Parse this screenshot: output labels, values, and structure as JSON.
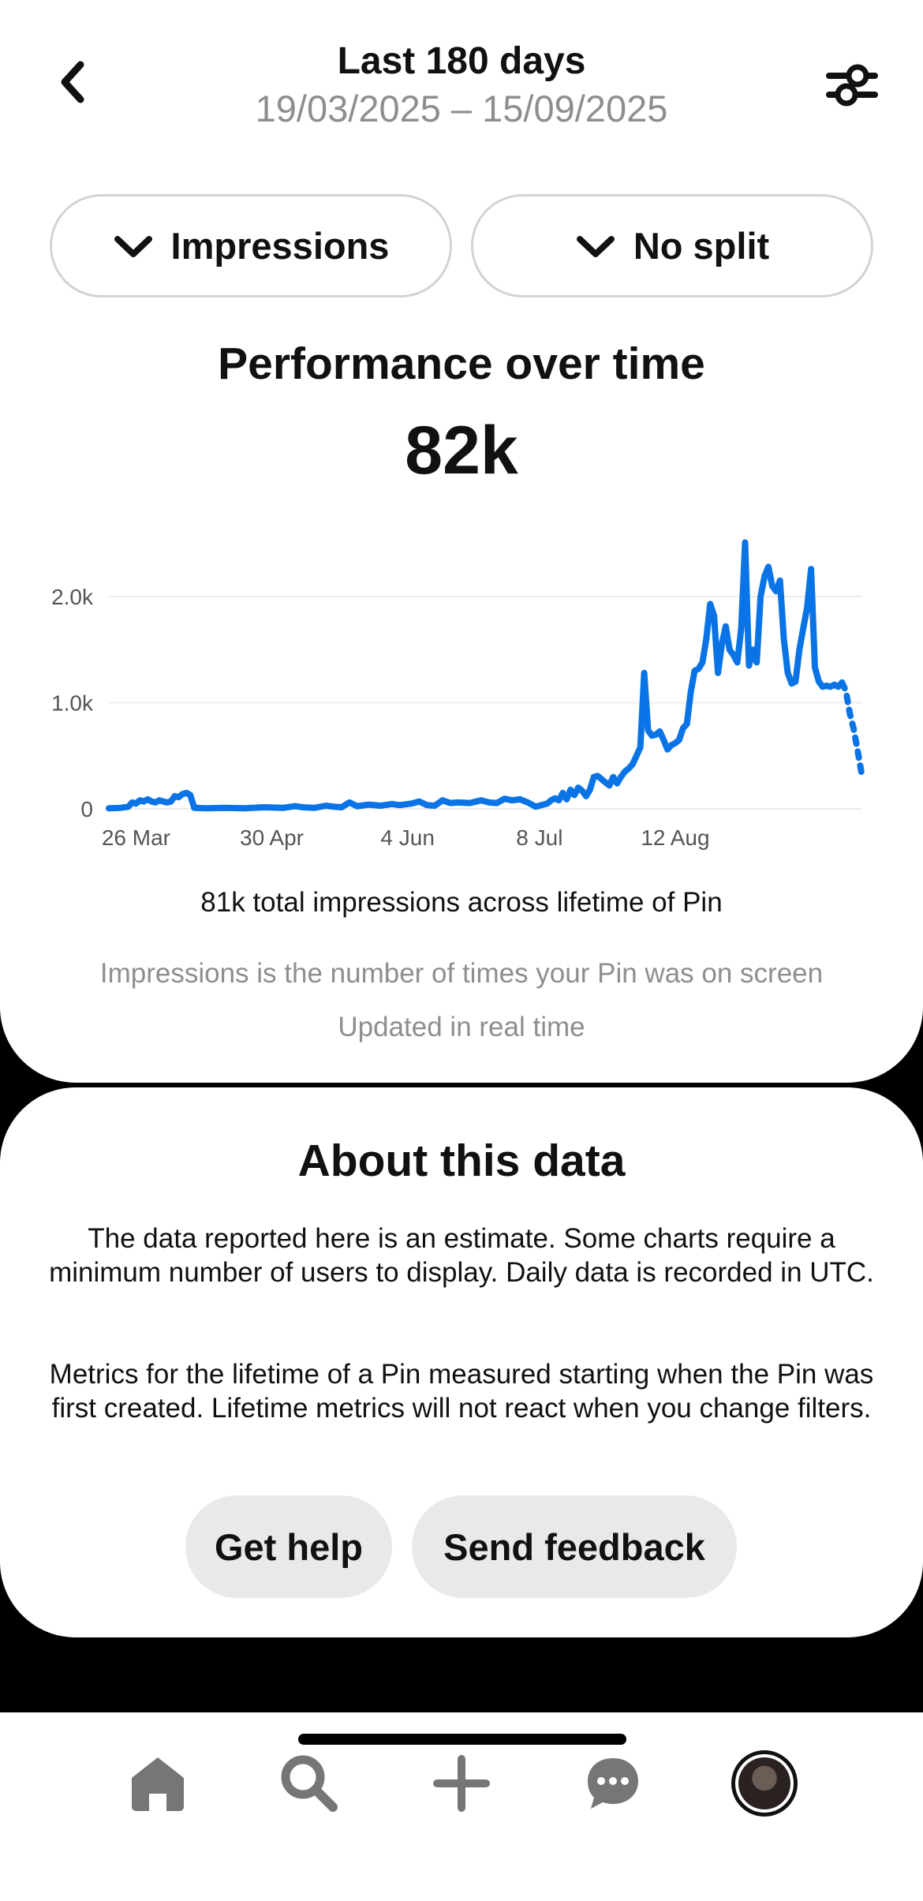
{
  "header": {
    "title": "Last 180 days",
    "date_range": "19/03/2025 – 15/09/2025",
    "back_icon": "chevron-left-icon",
    "filter_icon": "sliders-icon"
  },
  "dropdowns": {
    "metric": "Impressions",
    "split": "No split"
  },
  "chart_section": {
    "title": "Performance over time",
    "total": "82k",
    "lifetime_text": "81k total impressions across lifetime of Pin",
    "explanation": "Impressions is the number of times your Pin was on screen",
    "updated": "Updated in real time"
  },
  "chart_data": {
    "type": "line",
    "color": "#0a74e6",
    "grid": true,
    "ylim": [
      0,
      2500
    ],
    "y_ticks": [
      {
        "value": 0,
        "label": "0"
      },
      {
        "value": 1000,
        "label": "1.0k"
      },
      {
        "value": 2000,
        "label": "2.0k"
      }
    ],
    "x_ticks": [
      {
        "day": 7,
        "label": "26 Mar"
      },
      {
        "day": 42,
        "label": "30 Apr"
      },
      {
        "day": 77,
        "label": "4 Jun"
      },
      {
        "day": 111,
        "label": "8 Jul"
      },
      {
        "day": 146,
        "label": "12 Aug"
      }
    ],
    "x_range": [
      0,
      180
    ],
    "solid_points": [
      [
        0,
        5
      ],
      [
        3,
        10
      ],
      [
        5,
        20
      ],
      [
        6,
        60
      ],
      [
        7,
        50
      ],
      [
        8,
        80
      ],
      [
        9,
        70
      ],
      [
        10,
        90
      ],
      [
        11,
        70
      ],
      [
        12,
        60
      ],
      [
        13,
        80
      ],
      [
        14,
        70
      ],
      [
        15,
        60
      ],
      [
        16,
        70
      ],
      [
        17,
        120
      ],
      [
        18,
        110
      ],
      [
        19,
        140
      ],
      [
        20,
        150
      ],
      [
        21,
        130
      ],
      [
        22,
        10
      ],
      [
        25,
        5
      ],
      [
        30,
        10
      ],
      [
        35,
        5
      ],
      [
        40,
        15
      ],
      [
        45,
        10
      ],
      [
        48,
        25
      ],
      [
        50,
        15
      ],
      [
        53,
        10
      ],
      [
        56,
        30
      ],
      [
        58,
        20
      ],
      [
        60,
        15
      ],
      [
        62,
        60
      ],
      [
        64,
        25
      ],
      [
        67,
        40
      ],
      [
        70,
        30
      ],
      [
        73,
        45
      ],
      [
        75,
        35
      ],
      [
        78,
        50
      ],
      [
        80,
        70
      ],
      [
        82,
        35
      ],
      [
        84,
        30
      ],
      [
        86,
        80
      ],
      [
        88,
        55
      ],
      [
        90,
        60
      ],
      [
        93,
        55
      ],
      [
        96,
        80
      ],
      [
        98,
        60
      ],
      [
        100,
        55
      ],
      [
        102,
        95
      ],
      [
        104,
        80
      ],
      [
        106,
        90
      ],
      [
        108,
        60
      ],
      [
        110,
        20
      ],
      [
        112,
        40
      ],
      [
        113,
        50
      ],
      [
        114,
        80
      ],
      [
        115,
        100
      ],
      [
        116,
        80
      ],
      [
        117,
        150
      ],
      [
        118,
        90
      ],
      [
        119,
        180
      ],
      [
        120,
        130
      ],
      [
        121,
        200
      ],
      [
        122,
        170
      ],
      [
        123,
        120
      ],
      [
        124,
        180
      ],
      [
        125,
        300
      ],
      [
        126,
        310
      ],
      [
        127,
        280
      ],
      [
        128,
        250
      ],
      [
        129,
        220
      ],
      [
        130,
        300
      ],
      [
        131,
        240
      ],
      [
        132,
        300
      ],
      [
        133,
        350
      ],
      [
        134,
        380
      ],
      [
        135,
        420
      ],
      [
        136,
        500
      ],
      [
        137,
        580
      ],
      [
        138,
        1280
      ],
      [
        139,
        740
      ],
      [
        140,
        690
      ],
      [
        141,
        700
      ],
      [
        142,
        730
      ],
      [
        143,
        650
      ],
      [
        144,
        560
      ],
      [
        145,
        600
      ],
      [
        146,
        620
      ],
      [
        147,
        650
      ],
      [
        148,
        760
      ],
      [
        149,
        800
      ],
      [
        150,
        1100
      ],
      [
        151,
        1300
      ],
      [
        152,
        1320
      ],
      [
        153,
        1380
      ],
      [
        154,
        1600
      ],
      [
        155,
        1930
      ],
      [
        156,
        1820
      ],
      [
        157,
        1280
      ],
      [
        158,
        1550
      ],
      [
        159,
        1720
      ],
      [
        160,
        1500
      ],
      [
        161,
        1450
      ],
      [
        162,
        1380
      ],
      [
        163,
        1700
      ],
      [
        164,
        2510
      ],
      [
        165,
        1350
      ],
      [
        166,
        1500
      ],
      [
        167,
        1380
      ],
      [
        168,
        2000
      ],
      [
        169,
        2190
      ],
      [
        170,
        2280
      ],
      [
        171,
        2100
      ],
      [
        172,
        2050
      ],
      [
        173,
        2150
      ],
      [
        174,
        1600
      ],
      [
        175,
        1280
      ],
      [
        176,
        1180
      ],
      [
        177,
        1200
      ],
      [
        178,
        1500
      ],
      [
        179,
        1700
      ],
      [
        180,
        1900
      ],
      [
        181,
        2260
      ],
      [
        182,
        1330
      ],
      [
        183,
        1200
      ],
      [
        184,
        1150
      ],
      [
        185,
        1160
      ],
      [
        186,
        1150
      ],
      [
        187,
        1170
      ],
      [
        188,
        1150
      ],
      [
        189,
        1190
      ]
    ],
    "dotted_points": [
      [
        189,
        1190
      ],
      [
        190,
        1110
      ],
      [
        191,
        900
      ],
      [
        192,
        750
      ],
      [
        193,
        550
      ],
      [
        194,
        340
      ]
    ]
  },
  "about": {
    "title": "About this data",
    "paragraph1": "The data reported here is an estimate. Some charts require a minimum number of users to display. Daily data is recorded in UTC.",
    "paragraph2": "Metrics for the lifetime of a Pin measured starting when the Pin was first created. Lifetime metrics will not react when you change filters.",
    "help_label": "Get help",
    "feedback_label": "Send feedback"
  },
  "nav": {
    "items": [
      "home-icon",
      "search-icon",
      "plus-icon",
      "messages-icon",
      "profile-avatar"
    ]
  }
}
